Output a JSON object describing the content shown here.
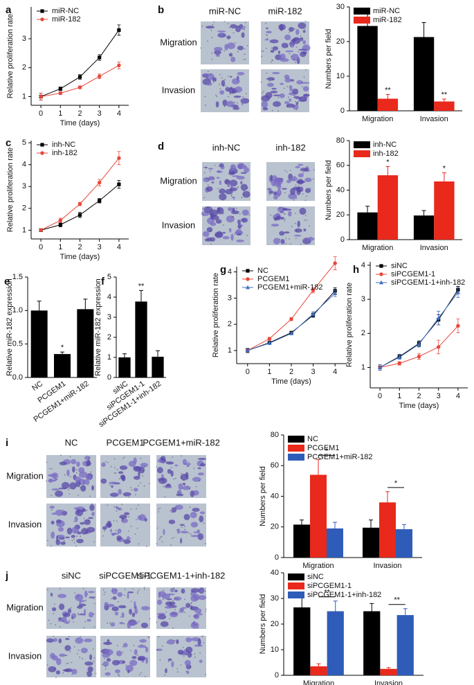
{
  "chart_data": [
    {
      "type": "line",
      "panel": "a",
      "xlabel": "Time (days)",
      "ylabel": "Relative proliferation rate",
      "x": [
        0,
        1,
        2,
        3,
        4
      ],
      "xlim": [
        -0.5,
        4.5
      ],
      "xticks": [
        0,
        1,
        2,
        3,
        4
      ],
      "ylim": [
        0.7,
        4.1
      ],
      "yticks": [
        1,
        2,
        3
      ],
      "legend": "upper left",
      "series": [
        {
          "name": "miR-NC",
          "color": "#000000",
          "marker": "square",
          "values": [
            1.0,
            1.27,
            1.68,
            2.35,
            3.3
          ],
          "errors": [
            0.12,
            0.06,
            0.08,
            0.1,
            0.18
          ]
        },
        {
          "name": "miR-182",
          "color": "#e8473a",
          "marker": "circle",
          "values": [
            1.0,
            1.12,
            1.32,
            1.7,
            2.08
          ],
          "errors": [
            0.12,
            0.05,
            0.05,
            0.08,
            0.12
          ]
        }
      ]
    },
    {
      "type": "bar",
      "categories": [
        "Migration",
        "Invasion"
      ],
      "ylabel": "Numbers per field",
      "ylim": [
        0,
        30
      ],
      "yticks": [
        0,
        10,
        20,
        30
      ],
      "legend": "upper left",
      "series": [
        {
          "name": "miR-NC",
          "color": "#000000",
          "values": [
            24.5,
            21.3
          ],
          "errors": [
            3.5,
            4.2
          ]
        },
        {
          "name": "miR-182",
          "color": "#e8291c",
          "values": [
            3.5,
            2.7
          ],
          "errors": [
            1.2,
            0.7
          ],
          "labels": [
            "**",
            "**"
          ]
        }
      ]
    },
    {
      "type": "line",
      "panel": "c",
      "xlabel": "Time (days)",
      "ylabel": "Relative proliferation rate",
      "x": [
        0,
        1,
        2,
        3,
        4
      ],
      "xlim": [
        -0.5,
        4.5
      ],
      "xticks": [
        0,
        1,
        2,
        3,
        4
      ],
      "ylim": [
        0.6,
        5.1
      ],
      "yticks": [
        1,
        2,
        3,
        4,
        5
      ],
      "legend": "upper left",
      "series": [
        {
          "name": "inh-NC",
          "color": "#000000",
          "marker": "square",
          "values": [
            1.0,
            1.25,
            1.7,
            2.35,
            3.1
          ],
          "errors": [
            0.05,
            0.1,
            0.12,
            0.1,
            0.18
          ]
        },
        {
          "name": "inh-182",
          "color": "#e8473a",
          "marker": "circle",
          "values": [
            1.0,
            1.45,
            2.2,
            3.18,
            4.3
          ],
          "errors": [
            0.05,
            0.1,
            0.08,
            0.15,
            0.3
          ]
        }
      ]
    },
    {
      "type": "bar",
      "categories": [
        "Migration",
        "Invasion"
      ],
      "ylabel": "Numbers per field",
      "ylim": [
        0,
        80
      ],
      "yticks": [
        0,
        20,
        40,
        60,
        80
      ],
      "legend": "upper left",
      "series": [
        {
          "name": "inh-NC",
          "color": "#000000",
          "values": [
            22,
            19.5
          ],
          "errors": [
            5,
            4
          ]
        },
        {
          "name": "inh-182",
          "color": "#e8291c",
          "values": [
            52,
            47
          ],
          "errors": [
            7,
            7
          ],
          "labels": [
            "*",
            "*"
          ]
        }
      ]
    },
    {
      "type": "bar",
      "panel": "e",
      "categories": [
        "NC",
        "PCGEM1",
        "PCGEM1+miR-182"
      ],
      "ylabel": "Relative miR-182 expression",
      "ylim": [
        0,
        1.5
      ],
      "yticks": [
        {
          "value": 0,
          "label": "0.0"
        },
        0.5,
        {
          "value": 1,
          "label": "1.0"
        },
        1.5
      ],
      "xtick_rotation": -35,
      "series": [
        {
          "color": "#000000",
          "values": [
            1.0,
            0.35,
            1.02
          ],
          "errors": [
            0.14,
            0.03,
            0.15
          ],
          "labels": [
            null,
            "*",
            null
          ]
        }
      ]
    },
    {
      "type": "bar",
      "panel": "f",
      "categories": [
        "siNC",
        "siPCGEM1-1",
        "siPCGEM1-1+inh-182"
      ],
      "ylabel": "Relative miR-182 expression",
      "ylim": [
        0,
        5
      ],
      "yticks": [
        0,
        1,
        2,
        3,
        4,
        5
      ],
      "xtick_rotation": -35,
      "series": [
        {
          "color": "#000000",
          "values": [
            1.0,
            3.78,
            1.03
          ],
          "errors": [
            0.18,
            0.55,
            0.3
          ],
          "labels": [
            null,
            "**",
            null
          ]
        }
      ]
    },
    {
      "type": "line",
      "panel": "g",
      "xlabel": "Time (days)",
      "ylabel": "Relative proliferation rate",
      "x": [
        0,
        1,
        2,
        3,
        4
      ],
      "xlim": [
        -0.5,
        4.5
      ],
      "xticks": [
        0,
        1,
        2,
        3,
        4
      ],
      "ylim": [
        0.5,
        4.2
      ],
      "yticks": [
        1,
        2,
        3,
        4
      ],
      "legend": "upper left",
      "series": [
        {
          "name": "NC",
          "color": "#000000",
          "marker": "square",
          "values": [
            1.0,
            1.3,
            1.68,
            2.35,
            3.28
          ],
          "errors": [
            0.08,
            0.05,
            0.05,
            0.08,
            0.12
          ]
        },
        {
          "name": "PCGEM1",
          "color": "#e8473a",
          "marker": "circle",
          "values": [
            1.0,
            1.45,
            2.2,
            3.3,
            4.33
          ],
          "errors": [
            0.05,
            0.05,
            0.06,
            0.1,
            0.25
          ]
        },
        {
          "name": "PCGEM1+miR-182",
          "color": "#3d6fc2",
          "marker": "triangle",
          "values": [
            1.0,
            1.28,
            1.65,
            2.4,
            3.18
          ],
          "errors": [
            0.05,
            0.05,
            0.05,
            0.08,
            0.12
          ]
        }
      ]
    },
    {
      "type": "line",
      "panel": "h",
      "xlabel": "Time (days)",
      "ylabel": "Relative proliferation rate",
      "x": [
        0,
        1,
        2,
        3,
        4
      ],
      "xlim": [
        -0.5,
        4.5
      ],
      "xticks": [
        0,
        1,
        2,
        3,
        4
      ],
      "ylim": [
        0.4,
        4.1
      ],
      "yticks": [
        1,
        2,
        3,
        4
      ],
      "legend": "upper left",
      "series": [
        {
          "name": "siNC",
          "color": "#000000",
          "marker": "square",
          "values": [
            1.0,
            1.32,
            1.7,
            2.4,
            3.28
          ],
          "errors": [
            0.08,
            0.06,
            0.08,
            0.15,
            0.1
          ]
        },
        {
          "name": "siPCGEM1-1",
          "color": "#e8473a",
          "marker": "circle",
          "values": [
            1.0,
            1.12,
            1.32,
            1.6,
            2.22
          ],
          "errors": [
            0.08,
            0.05,
            0.08,
            0.2,
            0.2
          ]
        },
        {
          "name": "siPCGEM1-1+inh-182",
          "color": "#3d6fc2",
          "marker": "triangle",
          "values": [
            1.0,
            1.3,
            1.68,
            2.45,
            3.2
          ],
          "errors": [
            0.08,
            0.06,
            0.08,
            0.2,
            0.15
          ]
        }
      ]
    },
    {
      "type": "bar",
      "categories": [
        "Migration",
        "Invasion"
      ],
      "ylabel": "Numbers per field",
      "ylim": [
        0,
        80
      ],
      "yticks": [
        0,
        20,
        40,
        60,
        80
      ],
      "legend": "upper left",
      "significance_brackets": true,
      "series": [
        {
          "name": "NC",
          "color": "#000000",
          "values": [
            21.5,
            19.5
          ],
          "errors": [
            3,
            5
          ]
        },
        {
          "name": "PCGEM1",
          "color": "#e8291c",
          "values": [
            54,
            36
          ],
          "errors": [
            10,
            7
          ]
        },
        {
          "name": "PCGEM1+miR-182",
          "color": "#2e5cb8",
          "values": [
            19,
            18.5
          ],
          "errors": [
            4,
            3
          ],
          "labels": [
            "*",
            "*"
          ]
        }
      ]
    },
    {
      "type": "bar",
      "categories": [
        "Migration",
        "Invasion"
      ],
      "ylabel": "Numbers per field",
      "ylim": [
        0,
        40
      ],
      "yticks": [
        0,
        10,
        20,
        30,
        40
      ],
      "legend": "upper left",
      "significance_brackets": true,
      "series": [
        {
          "name": "siNC",
          "color": "#000000",
          "values": [
            26.5,
            25
          ],
          "errors": [
            5,
            3
          ]
        },
        {
          "name": "siPCGEM1-1",
          "color": "#e8291c",
          "values": [
            3.5,
            2.5
          ],
          "errors": [
            1,
            0.5
          ]
        },
        {
          "name": "siPCGEM1-1+inh-182",
          "color": "#2e5cb8",
          "values": [
            25,
            23.5
          ],
          "errors": [
            4,
            2.5
          ],
          "labels": [
            "**",
            "**"
          ]
        }
      ]
    }
  ],
  "image_panels": [
    {
      "panel": "b",
      "columns": [
        "miR-NC",
        "miR-182"
      ],
      "rows": [
        "Migration",
        "Invasion"
      ]
    },
    {
      "panel": "d",
      "columns": [
        "inh-NC",
        "inh-182"
      ],
      "rows": [
        "Migration",
        "Invasion"
      ]
    },
    {
      "panel": "i",
      "columns": [
        "NC",
        "PCGEM1",
        "PCGEM1+miR-182"
      ],
      "rows": [
        "Migration",
        "Invasion"
      ]
    },
    {
      "panel": "j",
      "columns": [
        "siNC",
        "siPCGEM1-1",
        "siPCGEM1-1+inh-182"
      ],
      "rows": [
        "Migration",
        "Invasion"
      ]
    }
  ]
}
